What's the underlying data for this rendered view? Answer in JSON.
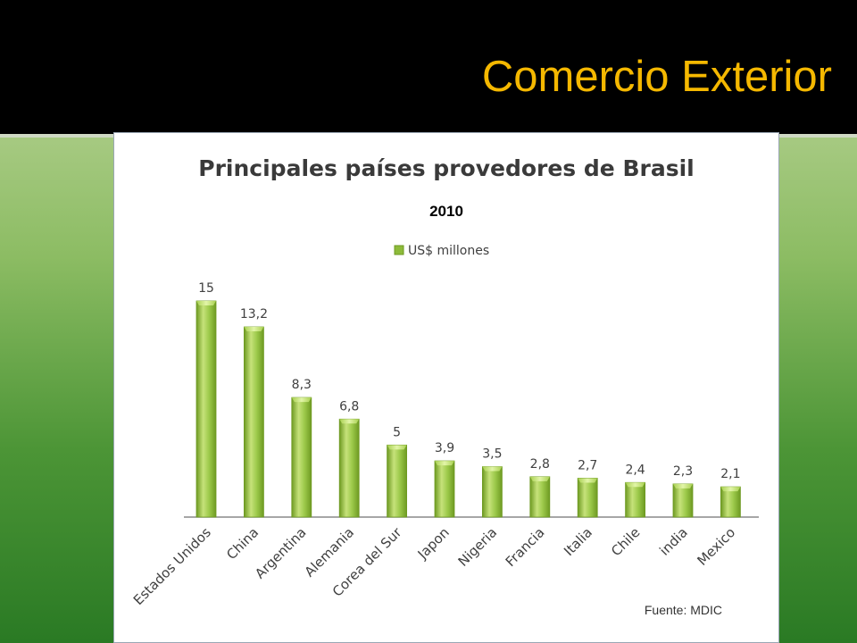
{
  "slide": {
    "title": "Comercio Exterior",
    "source": "Fuente: MDIC"
  },
  "colors": {
    "header_bg": "#000000",
    "title": "#f5b800",
    "bar_fill": "#8dbb3a",
    "bar_light": "#c6e27a",
    "bar_dark": "#6e9a22"
  },
  "chart_data": {
    "type": "bar",
    "title": "Principales países provedores de Brasil",
    "subtitle": "2010",
    "legend": "US$ millones",
    "legend_position": "top",
    "grid": false,
    "categories": [
      "Estados Unidos",
      "China",
      "Argentina",
      "Alemania",
      "Corea del Sur",
      "Japon",
      "Nigeria",
      "Francia",
      "Italia",
      "Chile",
      "india",
      "Mexico"
    ],
    "values": [
      15,
      13.2,
      8.3,
      6.8,
      5,
      3.9,
      3.5,
      2.8,
      2.7,
      2.4,
      2.3,
      2.1
    ],
    "value_labels": [
      "15",
      "13,2",
      "8,3",
      "6,8",
      "5",
      "3,9",
      "3,5",
      "2,8",
      "2,7",
      "2,4",
      "2,3",
      "2,1"
    ],
    "ylim": [
      0,
      15
    ]
  }
}
